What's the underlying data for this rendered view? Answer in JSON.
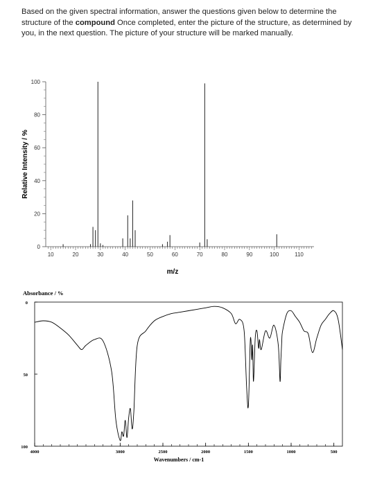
{
  "question": {
    "text_before": "Based on the given spectral information, answer the questions given below to determine the structure of the ",
    "bold": "compound",
    "text_after": "   Once completed, enter the picture of the structure, as determined by you, in the next question. The picture of your structure will be marked manually."
  },
  "chart_data": [
    {
      "type": "bar",
      "xlabel": "m/z",
      "ylabel": "Relative Intensity / %",
      "xlim": [
        8,
        116
      ],
      "ylim": [
        0,
        100
      ],
      "xticks": [
        10,
        20,
        30,
        40,
        50,
        60,
        70,
        80,
        90,
        100,
        110
      ],
      "yticks": [
        0,
        20,
        40,
        60,
        80,
        100
      ],
      "x": [
        15,
        26,
        27,
        28,
        29,
        30,
        31,
        39,
        41,
        42,
        43,
        44,
        55,
        57,
        58,
        70,
        72,
        73,
        101
      ],
      "values": [
        1.5,
        1.5,
        12,
        10,
        100,
        2,
        1,
        5,
        19,
        5,
        28,
        10,
        1.5,
        3,
        7,
        2.5,
        99,
        4.5,
        7.5
      ]
    },
    {
      "type": "line",
      "title": "Absorbance / %",
      "xlabel": "Wavenumbers / cm-1",
      "ylim": [
        0,
        100
      ],
      "yticks": [
        0,
        50,
        100
      ],
      "xticks": [
        4000,
        3000,
        2500,
        2000,
        1500,
        1000,
        500
      ],
      "xlim": [
        4000,
        400
      ],
      "x": [
        4000,
        3900,
        3800,
        3700,
        3600,
        3500,
        3450,
        3400,
        3300,
        3200,
        3100,
        3050,
        3000,
        2980,
        2960,
        2940,
        2920,
        2900,
        2880,
        2860,
        2840,
        2800,
        2700,
        2600,
        2500,
        2400,
        2300,
        2200,
        2100,
        2000,
        1900,
        1800,
        1700,
        1650,
        1600,
        1550,
        1520,
        1500,
        1480,
        1470,
        1460,
        1450,
        1440,
        1420,
        1400,
        1380,
        1370,
        1350,
        1300,
        1250,
        1200,
        1150,
        1130,
        1120,
        1110,
        1100,
        1050,
        1000,
        950,
        900,
        850,
        800,
        750,
        700,
        650,
        600,
        550,
        500,
        450,
        400
      ],
      "values": [
        14,
        13,
        14,
        18,
        23,
        30,
        33,
        30,
        26,
        27,
        48,
        82,
        96,
        90,
        93,
        82,
        94,
        80,
        74,
        88,
        76,
        30,
        20,
        13,
        10,
        8,
        7,
        6,
        5,
        4,
        3,
        4,
        8,
        15,
        12,
        20,
        60,
        72,
        30,
        26,
        40,
        30,
        55,
        25,
        20,
        32,
        26,
        33,
        20,
        25,
        16,
        30,
        55,
        40,
        28,
        20,
        8,
        6,
        10,
        14,
        20,
        22,
        35,
        25,
        16,
        12,
        8,
        6,
        12,
        33
      ]
    }
  ]
}
